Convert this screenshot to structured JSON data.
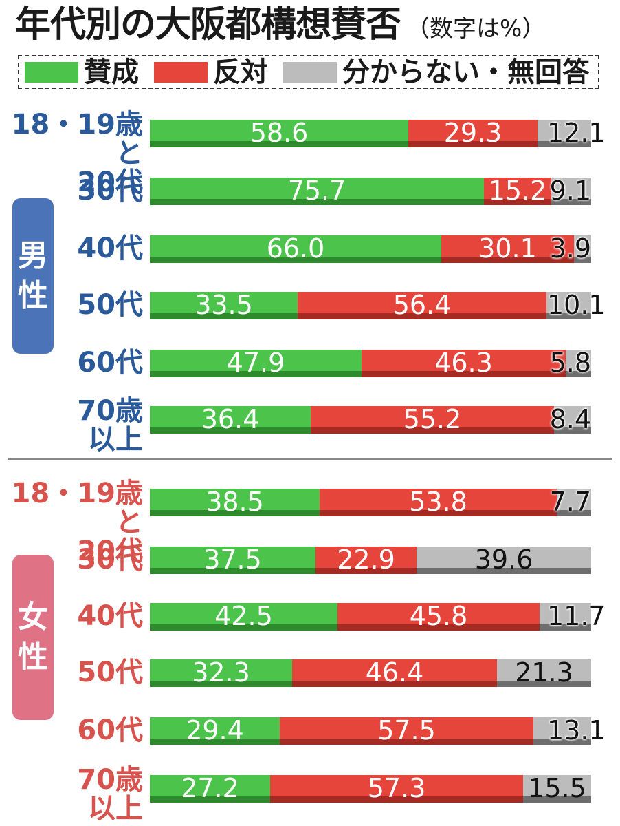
{
  "title": "年代別の大阪都構想賛否",
  "title_note": "（数字は%）",
  "legend": [
    {
      "label": "賛成",
      "color": "#4cc34a"
    },
    {
      "label": "反対",
      "color": "#e6453c"
    },
    {
      "label": "分からない・無回答",
      "color": "#bcbcbc"
    }
  ],
  "genders": {
    "male": {
      "label_1": "男",
      "label_2": "性",
      "color": "#4a73b8"
    },
    "female": {
      "label_1": "女",
      "label_2": "性",
      "color": "#e07286"
    }
  },
  "chart_data": {
    "type": "bar",
    "orientation": "horizontal",
    "stacked": true,
    "unit": "%",
    "series_names": [
      "賛成",
      "反対",
      "分からない・無回答"
    ],
    "groups": [
      {
        "name": "男性",
        "rows": [
          {
            "label": "18・19歳と\n20代",
            "values": [
              58.6,
              29.3,
              12.1
            ]
          },
          {
            "label": "30代",
            "values": [
              75.7,
              15.2,
              9.1
            ]
          },
          {
            "label": "40代",
            "values": [
              66.0,
              30.1,
              3.9
            ]
          },
          {
            "label": "50代",
            "values": [
              33.5,
              56.4,
              10.1
            ]
          },
          {
            "label": "60代",
            "values": [
              47.9,
              46.3,
              5.8
            ]
          },
          {
            "label": "70歳\n以上",
            "values": [
              36.4,
              55.2,
              8.4
            ]
          }
        ]
      },
      {
        "name": "女性",
        "rows": [
          {
            "label": "18・19歳と\n20代",
            "values": [
              38.5,
              53.8,
              7.7
            ]
          },
          {
            "label": "30代",
            "values": [
              37.5,
              22.9,
              39.6
            ]
          },
          {
            "label": "40代",
            "values": [
              42.5,
              45.8,
              11.7
            ]
          },
          {
            "label": "50代",
            "values": [
              32.3,
              46.4,
              21.3
            ]
          },
          {
            "label": "60代",
            "values": [
              29.4,
              57.5,
              13.1
            ]
          },
          {
            "label": "70歳\n以上",
            "values": [
              27.2,
              57.3,
              15.5
            ]
          }
        ]
      }
    ]
  }
}
